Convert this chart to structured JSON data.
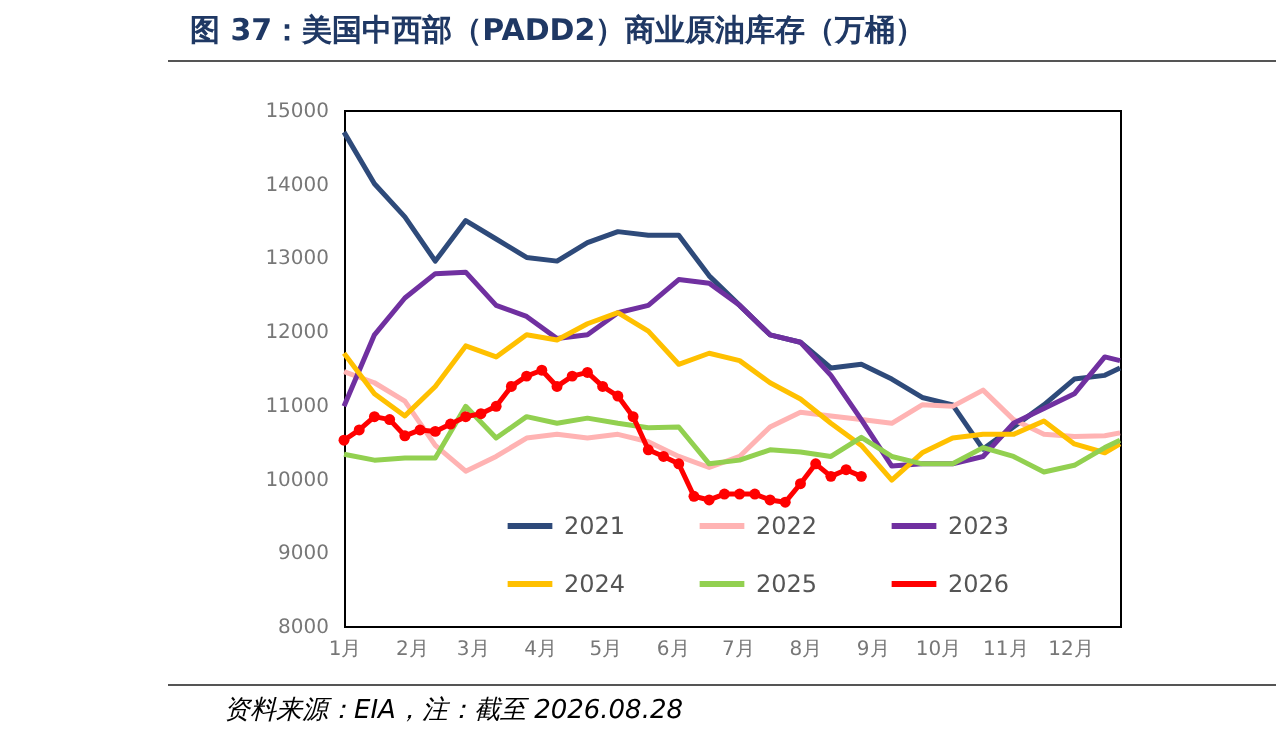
{
  "chart_data": {
    "type": "line",
    "title": "图 37：美国中西部（PADD2）商业原油库存（万桶）",
    "annotations": [
      "资料来源：EIA，注：截至 2026.08.28"
    ],
    "x": [
      "--01-01",
      "--01-15",
      "--01-29",
      "--02-12",
      "--02-26",
      "--03-12",
      "--03-26",
      "--04-09",
      "--04-23",
      "--05-07",
      "--05-21",
      "--06-04",
      "--06-18",
      "--07-02",
      "--07-16",
      "--07-30",
      "--08-13",
      "--08-27",
      "--09-10",
      "--09-24",
      "--10-08",
      "--10-22",
      "--11-05",
      "--11-19",
      "--12-03",
      "--12-17",
      "--12-24"
    ],
    "xlim": [
      "--01-01",
      "--12-24"
    ],
    "xticks": [
      {
        "value": "--01-01",
        "label": "1月"
      },
      {
        "value": "--02-01",
        "label": "2月"
      },
      {
        "value": "--03-01",
        "label": "3月"
      },
      {
        "value": "--04-01",
        "label": "4月"
      },
      {
        "value": "--05-01",
        "label": "5月"
      },
      {
        "value": "--06-01",
        "label": "6月"
      },
      {
        "value": "--07-01",
        "label": "7月"
      },
      {
        "value": "--08-01",
        "label": "8月"
      },
      {
        "value": "--09-01",
        "label": "9月"
      },
      {
        "value": "--10-01",
        "label": "10月"
      },
      {
        "value": "--11-01",
        "label": "11月"
      },
      {
        "value": "--12-01",
        "label": "12月"
      }
    ],
    "ylim": [
      8000,
      15000
    ],
    "yticks": [
      8000,
      9000,
      10000,
      11000,
      12000,
      13000,
      14000,
      15000
    ],
    "legend": "bottom",
    "line_style": "solid",
    "series": [
      {
        "name": "2021",
        "color": "#2e4a7a",
        "values": [
          14700,
          14000,
          13550,
          12950,
          13500,
          13250,
          13000,
          12950,
          13200,
          13350,
          13300,
          13300,
          12750,
          12350,
          11950,
          11850,
          11500,
          11550,
          11350,
          11100,
          11000,
          10400,
          10700,
          11000,
          11350,
          11400,
          11500
        ]
      },
      {
        "name": "2022",
        "color": "#ffb3b3",
        "values": [
          11450,
          11300,
          11050,
          10450,
          10100,
          10300,
          10550,
          10600,
          10550,
          10600,
          10500,
          10300,
          10150,
          10300,
          10700,
          10900,
          10850,
          10800,
          10750,
          11000,
          10980,
          11200,
          10800,
          10600,
          10570,
          10580,
          10620
        ]
      },
      {
        "name": "2023",
        "color": "#7030a0",
        "values": [
          10980,
          11950,
          12450,
          12780,
          12800,
          12350,
          12200,
          11900,
          11950,
          12250,
          12350,
          12700,
          12650,
          12350,
          11950,
          11850,
          11400,
          10800,
          10170,
          10200,
          10200,
          10300,
          10750,
          10950,
          11150,
          11650,
          11600
        ]
      },
      {
        "name": "2024",
        "color": "#ffc000",
        "values": [
          11700,
          11150,
          10850,
          11250,
          11800,
          11650,
          11950,
          11880,
          12100,
          12250,
          12000,
          11550,
          11700,
          11600,
          11300,
          11080,
          10750,
          10450,
          9980,
          10350,
          10550,
          10600,
          10600,
          10780,
          10470,
          10350,
          10470
        ]
      },
      {
        "name": "2025",
        "color": "#92d050",
        "values": [
          10330,
          10250,
          10280,
          10280,
          10980,
          10550,
          10840,
          10750,
          10820,
          10750,
          10690,
          10700,
          10200,
          10250,
          10390,
          10360,
          10300,
          10560,
          10300,
          10200,
          10200,
          10420,
          10300,
          10090,
          10180,
          10420,
          10520
        ]
      },
      {
        "name": "2026",
        "color": "#ff0000",
        "marker": "circle",
        "x": [
          "--01-01",
          "--01-08",
          "--01-15",
          "--01-22",
          "--01-29",
          "--02-05",
          "--02-12",
          "--02-19",
          "--02-26",
          "--03-05",
          "--03-12",
          "--03-19",
          "--03-26",
          "--04-02",
          "--04-09",
          "--04-16",
          "--04-23",
          "--04-30",
          "--05-07",
          "--05-14",
          "--05-21",
          "--05-28",
          "--06-04",
          "--06-11",
          "--06-18",
          "--06-25",
          "--07-02",
          "--07-09",
          "--07-16",
          "--07-23",
          "--07-30",
          "--08-06",
          "--08-13",
          "--08-20",
          "--08-27"
        ],
        "values": [
          10520,
          10660,
          10840,
          10800,
          10580,
          10660,
          10640,
          10740,
          10840,
          10880,
          10980,
          11250,
          11390,
          11470,
          11250,
          11390,
          11440,
          11250,
          11120,
          10840,
          10390,
          10300,
          10200,
          9760,
          9710,
          9790,
          9790,
          9790,
          9710,
          9680,
          9930,
          10200,
          10030,
          10120,
          10030
        ]
      }
    ]
  }
}
